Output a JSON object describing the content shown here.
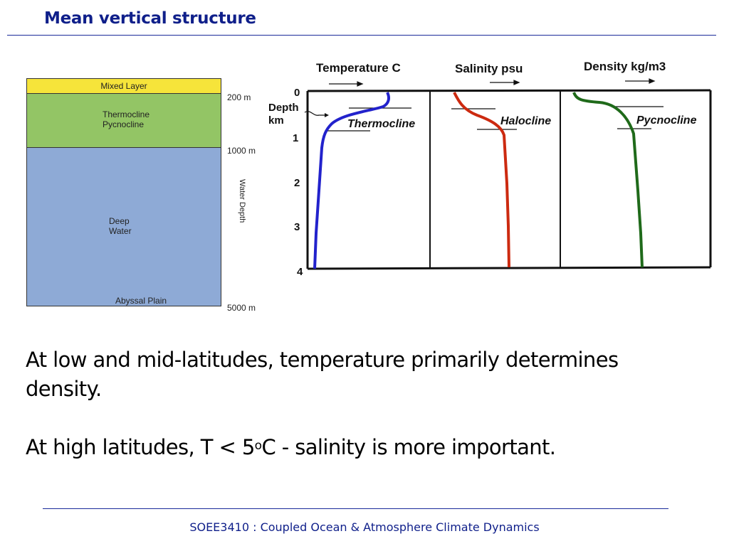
{
  "slide": {
    "title": "Mean vertical structure",
    "footer": "SOEE3410 : Coupled Ocean & Atmosphere Climate Dynamics"
  },
  "layers_diagram": {
    "mixed_layer": "Mixed Layer",
    "thermocline": "Thermocline",
    "pycnocline": "Pycnocline",
    "deep_water_1": "Deep",
    "deep_water_2": "Water",
    "abyssal_plain": "Abyssal Plain",
    "depth_200": "200 m",
    "depth_1000": "1000 m",
    "depth_5000": "5000 m",
    "water_depth": "Water Depth",
    "colors": {
      "mixed": "#f6e43a",
      "thermocline": "#93c565",
      "deep": "#8eaad6"
    }
  },
  "profiles": {
    "header_temperature": "Temperature C",
    "header_salinity": "Salinity psu",
    "header_density": "Density kg/m3",
    "depth_label_1": "Depth",
    "depth_label_2": "km",
    "depth_ticks": [
      "0",
      "1",
      "2",
      "3",
      "4"
    ],
    "label_thermocline": "Thermocline",
    "label_halocline": "Halocline",
    "label_pycnocline": "Pycnocline",
    "colors": {
      "temperature": "#2222cc",
      "salinity": "#cc2a10",
      "density": "#1f6a1a"
    }
  },
  "content": {
    "line1": "At low and mid-latitudes, temperature primarily determines",
    "line2": "density.",
    "line3_before": "At high latitudes, T < 5",
    "line3_sup": "o",
    "line3_after": "C - salinity is more important."
  }
}
